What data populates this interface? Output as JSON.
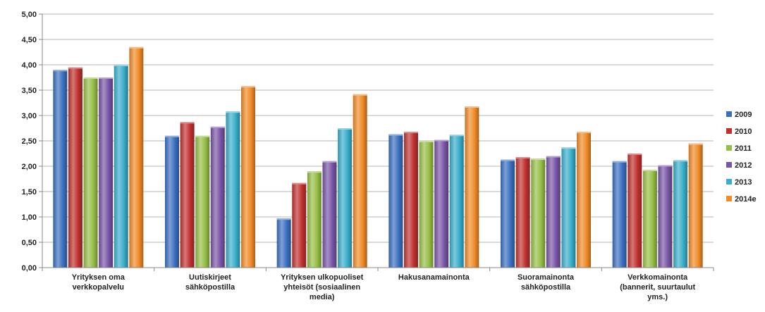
{
  "chart_data": {
    "type": "bar",
    "title": "",
    "xlabel": "",
    "ylabel": "",
    "ylim": [
      0,
      5
    ],
    "yticks": [
      "0,00",
      "0,50",
      "1,00",
      "1,50",
      "2,00",
      "2,50",
      "3,00",
      "3,50",
      "4,00",
      "4,50",
      "5,00"
    ],
    "grid": true,
    "legend_position": "right",
    "categories": [
      [
        "Yrityksen oma",
        "verkkopalvelu"
      ],
      [
        "Uutiskirjeet",
        "sähköpostilla"
      ],
      [
        "Yrityksen ulkopuoliset",
        "yhteisöt (sosiaalinen",
        "media)"
      ],
      [
        "Hakusanamainonta"
      ],
      [
        "Suoramainonta",
        "sähköpostilla"
      ],
      [
        "Verkkomainonta",
        "(bannerit, suurtaulut",
        "yms.)"
      ]
    ],
    "series": [
      {
        "name": "2009",
        "color": "#3A6FC0",
        "values": [
          3.9,
          2.6,
          0.97,
          2.63,
          2.13,
          2.1
        ]
      },
      {
        "name": "2010",
        "color": "#C0312E",
        "values": [
          3.95,
          2.87,
          1.67,
          2.68,
          2.18,
          2.25
        ]
      },
      {
        "name": "2011",
        "color": "#96BE45",
        "values": [
          3.75,
          2.6,
          1.9,
          2.5,
          2.15,
          1.93
        ]
      },
      {
        "name": "2012",
        "color": "#7854A6",
        "values": [
          3.75,
          2.78,
          2.1,
          2.52,
          2.2,
          2.02
        ]
      },
      {
        "name": "2013",
        "color": "#38AECB",
        "values": [
          4.0,
          3.08,
          2.75,
          2.62,
          2.37,
          2.12
        ]
      },
      {
        "name": "2014e",
        "color": "#F08A26",
        "values": [
          4.35,
          3.58,
          3.42,
          3.18,
          2.68,
          2.45
        ]
      }
    ]
  }
}
